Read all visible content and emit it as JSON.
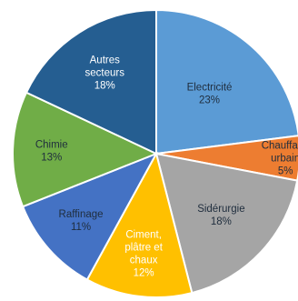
{
  "chart_data": {
    "type": "pie",
    "slices": [
      {
        "label": "Electricité",
        "value": 23,
        "value_label": "23%",
        "color": "#5b9bd5"
      },
      {
        "label": "Chauffage urbain",
        "value": 5,
        "value_label": "5%",
        "color": "#ed7d31"
      },
      {
        "label": "Sidérurgie",
        "value": 18,
        "value_label": "18%",
        "color": "#a5a5a5"
      },
      {
        "label": "Ciment, plâtre et chaux",
        "value": 12,
        "value_label": "12%",
        "color": "#ffc000"
      },
      {
        "label": "Raffinage",
        "value": 11,
        "value_label": "11%",
        "color": "#4472c4"
      },
      {
        "label": "Chimie",
        "value": 13,
        "value_label": "13%",
        "color": "#70ad47"
      },
      {
        "label": "Autres secteurs",
        "value": 18,
        "value_label": "18%",
        "color": "#255e91"
      }
    ],
    "start_angle": "12 o'clock",
    "direction": "clockwise",
    "legend": "none",
    "data_labels": "inside"
  }
}
